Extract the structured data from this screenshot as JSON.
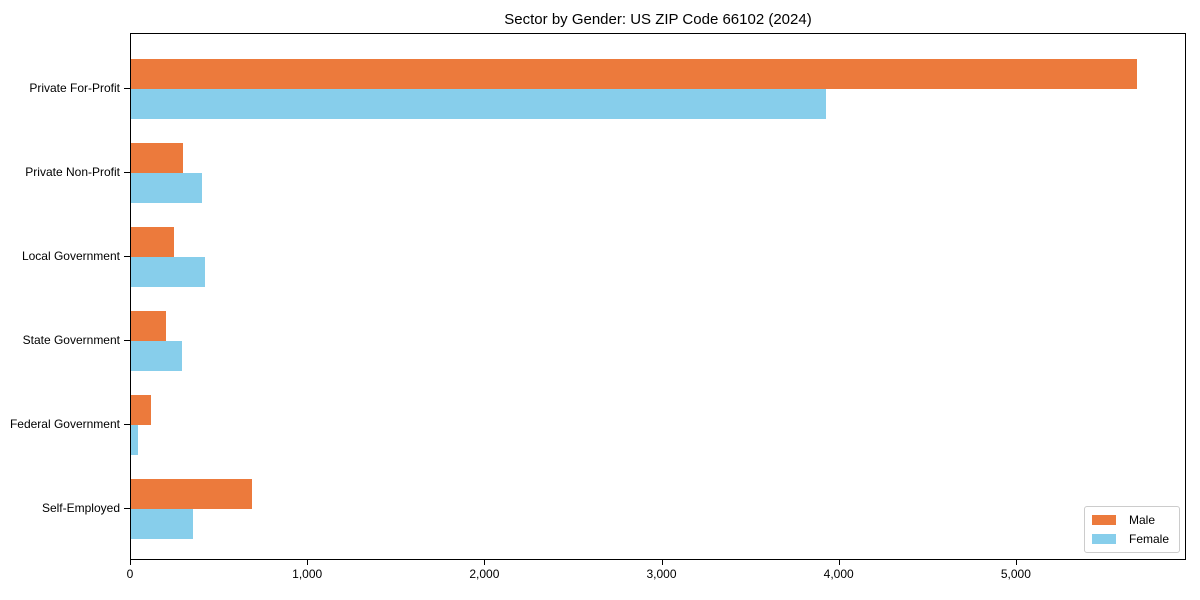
{
  "chart_data": {
    "type": "bar",
    "orientation": "horizontal",
    "title": "Sector by Gender: US ZIP Code 66102 (2024)",
    "categories": [
      "Private For-Profit",
      "Private Non-Profit",
      "Local Government",
      "State Government",
      "Federal Government",
      "Self-Employed"
    ],
    "series": [
      {
        "name": "Male",
        "color": "#EC7A3C",
        "values": [
          5675,
          295,
          245,
          195,
          110,
          685
        ]
      },
      {
        "name": "Female",
        "color": "#87CEEB",
        "values": [
          3920,
          400,
          420,
          290,
          40,
          350
        ]
      }
    ],
    "xlabel": "",
    "ylabel": "",
    "xlim": [
      0,
      5960
    ],
    "xticks": [
      {
        "value": 0,
        "label": "0"
      },
      {
        "value": 1000,
        "label": "1,000"
      },
      {
        "value": 2000,
        "label": "2,000"
      },
      {
        "value": 3000,
        "label": "3,000"
      },
      {
        "value": 4000,
        "label": "4,000"
      },
      {
        "value": 5000,
        "label": "5,000"
      }
    ],
    "grid": false,
    "legend": {
      "position": "lower right",
      "entries": [
        "Male",
        "Female"
      ]
    }
  }
}
